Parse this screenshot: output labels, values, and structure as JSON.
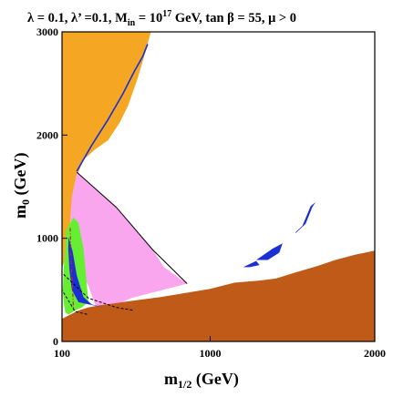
{
  "chart_data": {
    "type": "contour",
    "title": "λ = 0.1, λ’ =0.1, M",
    "title_sub": "in",
    "title_rest": " = 10",
    "title_sup": "17",
    "title_tail": " GeV, tan β = 55,  μ > 0",
    "xlabel": "m",
    "xlabel_sub": "1/2",
    "xlabel_unit": " (GeV)",
    "ylabel": "m",
    "ylabel_sub": "0",
    "ylabel_unit": " (GeV)",
    "xlim": [
      100,
      2000
    ],
    "ylim": [
      0,
      3000
    ],
    "x_ticks": [
      100,
      1000,
      2000
    ],
    "y_ticks": [
      0,
      1000,
      2000,
      3000
    ],
    "colors": {
      "orange_region": "#f5a623",
      "brown_region": "#bf5a18",
      "pink_region": "#f9a6ef",
      "green_region": "#66ee33",
      "relic_blue": "#1a2fd6",
      "contour_black": "#000000",
      "contour_red": "#cc2222"
    },
    "regions": {
      "orange": [
        [
          100,
          3000
        ],
        [
          640,
          3000
        ],
        [
          600,
          2770
        ],
        [
          560,
          2550
        ],
        [
          500,
          2280
        ],
        [
          450,
          2120
        ],
        [
          380,
          1950
        ],
        [
          300,
          1860
        ],
        [
          230,
          1760
        ],
        [
          190,
          1600
        ],
        [
          170,
          1400
        ],
        [
          150,
          1150
        ],
        [
          140,
          1000
        ],
        [
          130,
          900
        ],
        [
          118,
          800
        ],
        [
          110,
          750
        ],
        [
          100,
          720
        ]
      ],
      "brown": [
        [
          100,
          0
        ],
        [
          2000,
          0
        ],
        [
          2000,
          880
        ],
        [
          1880,
          840
        ],
        [
          1760,
          790
        ],
        [
          1650,
          730
        ],
        [
          1520,
          670
        ],
        [
          1400,
          610
        ],
        [
          1300,
          590
        ],
        [
          1150,
          570
        ],
        [
          1000,
          510
        ],
        [
          850,
          470
        ],
        [
          700,
          430
        ],
        [
          550,
          400
        ],
        [
          420,
          370
        ],
        [
          330,
          350
        ],
        [
          260,
          330
        ],
        [
          200,
          300
        ],
        [
          150,
          260
        ],
        [
          100,
          220
        ]
      ],
      "pink": [
        [
          190,
          1640
        ],
        [
          290,
          1500
        ],
        [
          430,
          1300
        ],
        [
          540,
          1100
        ],
        [
          650,
          890
        ],
        [
          720,
          720
        ],
        [
          860,
          560
        ],
        [
          520,
          420
        ],
        [
          400,
          330
        ],
        [
          310,
          320
        ],
        [
          260,
          540
        ],
        [
          200,
          720
        ],
        [
          160,
          1000
        ],
        [
          150,
          1200
        ],
        [
          160,
          1400
        ]
      ],
      "green": [
        [
          125,
          1080
        ],
        [
          170,
          1200
        ],
        [
          200,
          1150
        ],
        [
          230,
          900
        ],
        [
          245,
          650
        ],
        [
          260,
          380
        ],
        [
          220,
          330
        ],
        [
          180,
          300
        ],
        [
          140,
          260
        ],
        [
          120,
          280
        ],
        [
          110,
          380
        ],
        [
          105,
          500
        ],
        [
          110,
          700
        ],
        [
          120,
          900
        ]
      ],
      "relic_band": [
        [
          140,
          1010
        ],
        [
          165,
          870
        ],
        [
          190,
          640
        ],
        [
          230,
          430
        ],
        [
          280,
          360
        ],
        [
          350,
          330
        ],
        [
          200,
          380
        ],
        [
          160,
          500
        ],
        [
          145,
          700
        ],
        [
          138,
          900
        ]
      ],
      "relic_diagonal": [
        [
          190,
          1650
        ],
        [
          280,
          1900
        ],
        [
          380,
          2150
        ],
        [
          470,
          2400
        ],
        [
          540,
          2620
        ],
        [
          590,
          2760
        ],
        [
          620,
          2880
        ]
      ],
      "relic_islands": [
        [
          [
            1520,
            1050
          ],
          [
            1580,
            1140
          ],
          [
            1620,
            1300
          ],
          [
            1640,
            1350
          ],
          [
            1610,
            1310
          ],
          [
            1560,
            1120
          ],
          [
            1520,
            1060
          ]
        ],
        [
          [
            1280,
            790
          ],
          [
            1380,
            900
          ],
          [
            1440,
            950
          ],
          [
            1420,
            860
          ],
          [
            1350,
            790
          ]
        ],
        [
          [
            1200,
            720
          ],
          [
            1280,
            780
          ],
          [
            1300,
            740
          ],
          [
            1240,
            720
          ]
        ]
      ],
      "black_contours": [
        [
          [
            190,
            1640
          ],
          [
            430,
            1300
          ],
          [
            650,
            890
          ],
          [
            860,
            560
          ]
        ],
        [
          [
            110,
            650
          ],
          [
            260,
            420
          ],
          [
            430,
            330
          ],
          [
            540,
            300
          ]
        ],
        [
          [
            80,
            550
          ],
          [
            180,
            290
          ],
          [
            260,
            260
          ]
        ]
      ],
      "red_dashdot": [
        [
          150,
          1100
        ],
        [
          155,
          800
        ],
        [
          165,
          500
        ],
        [
          170,
          300
        ]
      ]
    }
  }
}
